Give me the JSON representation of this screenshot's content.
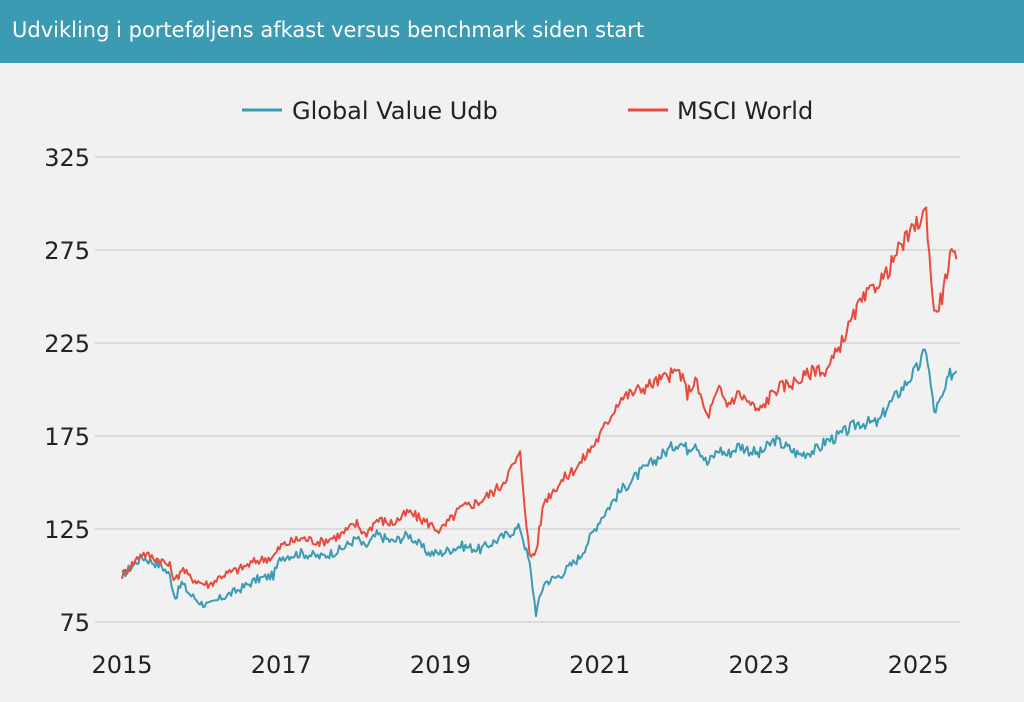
{
  "header": {
    "title": "Udvikling i porteføljens afkast versus benchmark siden start",
    "background": "#3a9bb2"
  },
  "chart_data": {
    "type": "line",
    "title": "Udvikling i porteføljens afkast versus benchmark siden start",
    "xlabel": "",
    "ylabel": "",
    "xlim": [
      2015.0,
      2025.5
    ],
    "ylim": [
      75,
      325
    ],
    "x_ticks": [
      "2015",
      "2017",
      "2019",
      "2021",
      "2023",
      "2025"
    ],
    "y_ticks": [
      "75",
      "125",
      "175",
      "225",
      "275",
      "325"
    ],
    "grid": "horizontal",
    "legend_position": "top",
    "series": [
      {
        "name": "Global Value Udb",
        "color": "#3a9bb2",
        "x": [
          2015.0,
          2015.25,
          2015.5,
          2015.6,
          2015.67,
          2015.75,
          2015.85,
          2016.0,
          2016.1,
          2016.25,
          2016.45,
          2016.7,
          2016.9,
          2017.0,
          2017.25,
          2017.5,
          2017.75,
          2017.95,
          2018.05,
          2018.2,
          2018.4,
          2018.6,
          2018.85,
          2019.0,
          2019.25,
          2019.5,
          2019.75,
          2020.0,
          2020.12,
          2020.2,
          2020.3,
          2020.5,
          2020.75,
          2021.0,
          2021.25,
          2021.5,
          2021.75,
          2022.0,
          2022.1,
          2022.2,
          2022.35,
          2022.5,
          2022.6,
          2022.75,
          2023.0,
          2023.2,
          2023.5,
          2023.75,
          2023.83,
          2024.0,
          2024.25,
          2024.5,
          2024.6,
          2024.75,
          2025.0,
          2025.1,
          2025.2,
          2025.3,
          2025.4,
          2025.48
        ],
        "y": [
          100,
          110,
          105,
          100,
          88,
          96,
          90,
          85,
          84,
          88,
          92,
          98,
          100,
          110,
          112,
          110,
          114,
          120,
          115,
          122,
          118,
          122,
          112,
          112,
          116,
          114,
          120,
          126,
          106,
          80,
          96,
          100,
          110,
          130,
          145,
          155,
          164,
          172,
          168,
          172,
          160,
          168,
          165,
          170,
          165,
          173,
          165,
          168,
          172,
          175,
          182,
          182,
          190,
          198,
          212,
          222,
          188,
          195,
          208,
          210
        ]
      },
      {
        "name": "MSCI World",
        "color": "#e64b3d",
        "x": [
          2015.0,
          2015.25,
          2015.5,
          2015.6,
          2015.67,
          2015.75,
          2015.85,
          2016.0,
          2016.1,
          2016.25,
          2016.45,
          2016.7,
          2016.9,
          2017.0,
          2017.25,
          2017.5,
          2017.75,
          2017.95,
          2018.05,
          2018.2,
          2018.4,
          2018.6,
          2018.85,
          2019.0,
          2019.25,
          2019.5,
          2019.75,
          2020.0,
          2020.12,
          2020.2,
          2020.3,
          2020.5,
          2020.75,
          2021.0,
          2021.25,
          2021.5,
          2021.75,
          2022.0,
          2022.1,
          2022.2,
          2022.35,
          2022.5,
          2022.6,
          2022.75,
          2023.0,
          2023.2,
          2023.5,
          2023.75,
          2023.83,
          2024.0,
          2024.25,
          2024.5,
          2024.6,
          2024.75,
          2025.0,
          2025.1,
          2025.2,
          2025.3,
          2025.4,
          2025.48
        ],
        "y": [
          100,
          112,
          108,
          105,
          97,
          104,
          99,
          96,
          95,
          100,
          103,
          108,
          110,
          116,
          120,
          118,
          122,
          128,
          122,
          130,
          128,
          134,
          128,
          124,
          136,
          140,
          148,
          165,
          110,
          113,
          140,
          150,
          160,
          175,
          195,
          200,
          205,
          210,
          198,
          205,
          185,
          200,
          192,
          198,
          188,
          200,
          205,
          212,
          208,
          222,
          245,
          258,
          262,
          275,
          290,
          296,
          240,
          250,
          272,
          270
        ]
      }
    ]
  }
}
